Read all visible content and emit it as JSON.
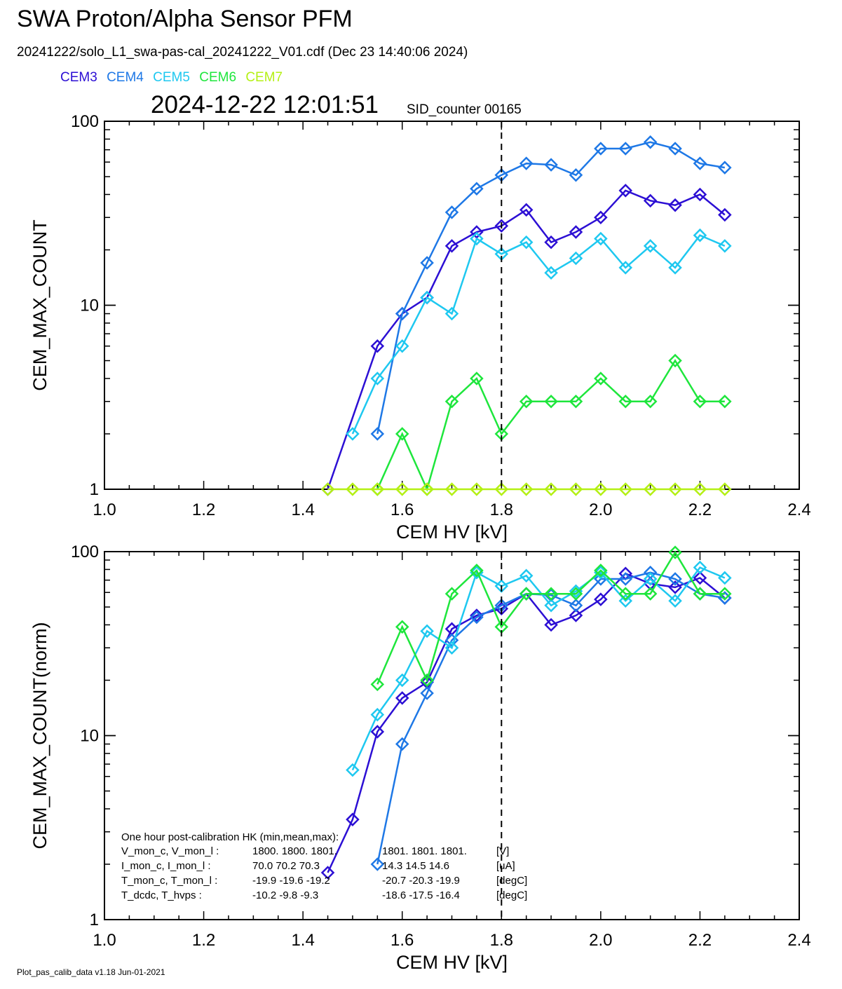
{
  "header": {
    "title": "SWA Proton/Alpha Sensor PFM",
    "subtitle": "20241222/solo_L1_swa-pas-cal_20241222_V01.cdf  (Dec 23 14:40:06 2024)",
    "datetime": "2024-12-22 12:01:51",
    "sid": "SID_counter 00165"
  },
  "legend": [
    {
      "name": "CEM3",
      "color": "#2c0fd4"
    },
    {
      "name": "CEM4",
      "color": "#1e78e6"
    },
    {
      "name": "CEM5",
      "color": "#1ec8f0"
    },
    {
      "name": "CEM6",
      "color": "#1ee63c"
    },
    {
      "name": "CEM7",
      "color": "#b4f014"
    }
  ],
  "footer": "Plot_pas_calib_data v1.18 Jun-01-2021",
  "hk": {
    "title": "One hour post-calibration HK (min,mean,max):",
    "rows": [
      {
        "label": "V_mon_c, V_mon_l :",
        "a": "1800.  1800.  1801.",
        "b": "1801.  1801.  1801.",
        "unit": "[V]"
      },
      {
        "label": "I_mon_c,  I_mon_l :",
        "a": "70.0   70.2   70.3",
        "b": "14.3   14.5   14.6",
        "unit": "[uA]"
      },
      {
        "label": "T_mon_c, T_mon_l :",
        "a": "-19.9   -19.6   -19.2",
        "b": "-20.7   -20.3   -19.9",
        "unit": "[degC]"
      },
      {
        "label": "T_dcdc,    T_hvps :",
        "a": "-10.2   -9.8   -9.3",
        "b": "-18.6   -17.5   -16.4",
        "unit": "[degC]"
      }
    ]
  },
  "chart_data": [
    {
      "type": "line",
      "xlabel": "CEM HV [kV]",
      "ylabel": "CEM_MAX_COUNT",
      "xlim": [
        1.0,
        2.4
      ],
      "ylim": [
        1,
        100
      ],
      "yscale": "log",
      "xticks": [
        "1.0",
        "1.2",
        "1.4",
        "1.6",
        "1.8",
        "2.0",
        "2.2",
        "2.4"
      ],
      "yticks": [
        "1",
        "10",
        "100"
      ],
      "vline": 1.8,
      "series": [
        {
          "name": "CEM3",
          "color": "#2c0fd4",
          "x": [
            1.45,
            1.55,
            1.6,
            1.65,
            1.7,
            1.75,
            1.8,
            1.85,
            1.9,
            1.95,
            2.0,
            2.05,
            2.1,
            2.15,
            2.2,
            2.25
          ],
          "y": [
            1,
            6,
            9,
            11,
            21,
            25,
            27,
            33,
            22,
            25,
            30,
            42,
            37,
            35,
            40,
            31
          ]
        },
        {
          "name": "CEM4",
          "color": "#1e78e6",
          "x": [
            1.55,
            1.6,
            1.65,
            1.7,
            1.75,
            1.8,
            1.85,
            1.9,
            1.95,
            2.0,
            2.05,
            2.1,
            2.15,
            2.2,
            2.25
          ],
          "y": [
            2,
            9,
            17,
            32,
            43,
            51,
            59,
            58,
            51,
            71,
            71,
            77,
            71,
            59,
            56
          ]
        },
        {
          "name": "CEM5",
          "color": "#1ec8f0",
          "x": [
            1.5,
            1.55,
            1.6,
            1.65,
            1.7,
            1.75,
            1.8,
            1.85,
            1.9,
            1.95,
            2.0,
            2.05,
            2.1,
            2.15,
            2.2,
            2.25
          ],
          "y": [
            2,
            4,
            6,
            11,
            9,
            23,
            19,
            22,
            15,
            18,
            23,
            16,
            21,
            16,
            24,
            21
          ]
        },
        {
          "name": "CEM6",
          "color": "#1ee63c",
          "x": [
            1.55,
            1.6,
            1.65,
            1.7,
            1.75,
            1.8,
            1.85,
            1.9,
            1.95,
            2.0,
            2.05,
            2.1,
            2.15,
            2.2,
            2.25
          ],
          "y": [
            1,
            2,
            1,
            3,
            4,
            2,
            3,
            3,
            3,
            4,
            3,
            3,
            5,
            3,
            3
          ]
        },
        {
          "name": "CEM7",
          "color": "#b4f014",
          "x": [
            1.45,
            1.5,
            1.55,
            1.6,
            1.65,
            1.7,
            1.75,
            1.8,
            1.85,
            1.9,
            1.95,
            2.0,
            2.05,
            2.1,
            2.15,
            2.2,
            2.25
          ],
          "y": [
            1,
            1,
            1,
            1,
            1,
            1,
            1,
            1,
            1,
            1,
            1,
            1,
            1,
            1,
            1,
            1,
            1
          ]
        }
      ]
    },
    {
      "type": "line",
      "xlabel": "CEM HV [kV]",
      "ylabel": "CEM_MAX_COUNT(norm)",
      "xlim": [
        1.0,
        2.4
      ],
      "ylim": [
        1,
        100
      ],
      "yscale": "log",
      "xticks": [
        "1.0",
        "1.2",
        "1.4",
        "1.6",
        "1.8",
        "2.0",
        "2.2",
        "2.4"
      ],
      "yticks": [
        "1",
        "10",
        "100"
      ],
      "vline": 1.8,
      "series": [
        {
          "name": "CEM3",
          "color": "#2c0fd4",
          "x": [
            1.45,
            1.5,
            1.55,
            1.6,
            1.65,
            1.7,
            1.75,
            1.8,
            1.85,
            1.9,
            1.95,
            2.0,
            2.05,
            2.1,
            2.15,
            2.2,
            2.25
          ],
          "y": [
            1.8,
            3.5,
            10.5,
            16,
            19.5,
            38,
            45,
            49,
            59,
            40,
            45,
            55,
            76,
            67,
            64,
            72,
            56
          ]
        },
        {
          "name": "CEM4",
          "color": "#1e78e6",
          "x": [
            1.55,
            1.6,
            1.65,
            1.7,
            1.75,
            1.8,
            1.85,
            1.9,
            1.95,
            2.0,
            2.05,
            2.1,
            2.15,
            2.2,
            2.25
          ],
          "y": [
            2,
            9,
            17,
            33,
            44,
            51,
            59,
            58,
            51,
            71,
            71,
            77,
            71,
            59,
            56
          ]
        },
        {
          "name": "CEM5",
          "color": "#1ec8f0",
          "x": [
            1.5,
            1.55,
            1.6,
            1.65,
            1.7,
            1.75,
            1.8,
            1.85,
            1.9,
            1.95,
            2.0,
            2.05,
            2.1,
            2.15,
            2.2,
            2.25
          ],
          "y": [
            6.5,
            13,
            20,
            37,
            30,
            77,
            65,
            74,
            51,
            61,
            77,
            54,
            71,
            54,
            82,
            72
          ]
        },
        {
          "name": "CEM6",
          "color": "#1ee63c",
          "x": [
            1.55,
            1.6,
            1.65,
            1.7,
            1.75,
            1.8,
            1.85,
            1.9,
            1.95,
            2.0,
            2.05,
            2.1,
            2.15,
            2.2,
            2.25
          ],
          "y": [
            19,
            39,
            20,
            59,
            79,
            39,
            59,
            59,
            59,
            79,
            59,
            59,
            99,
            59,
            59
          ]
        }
      ]
    }
  ]
}
